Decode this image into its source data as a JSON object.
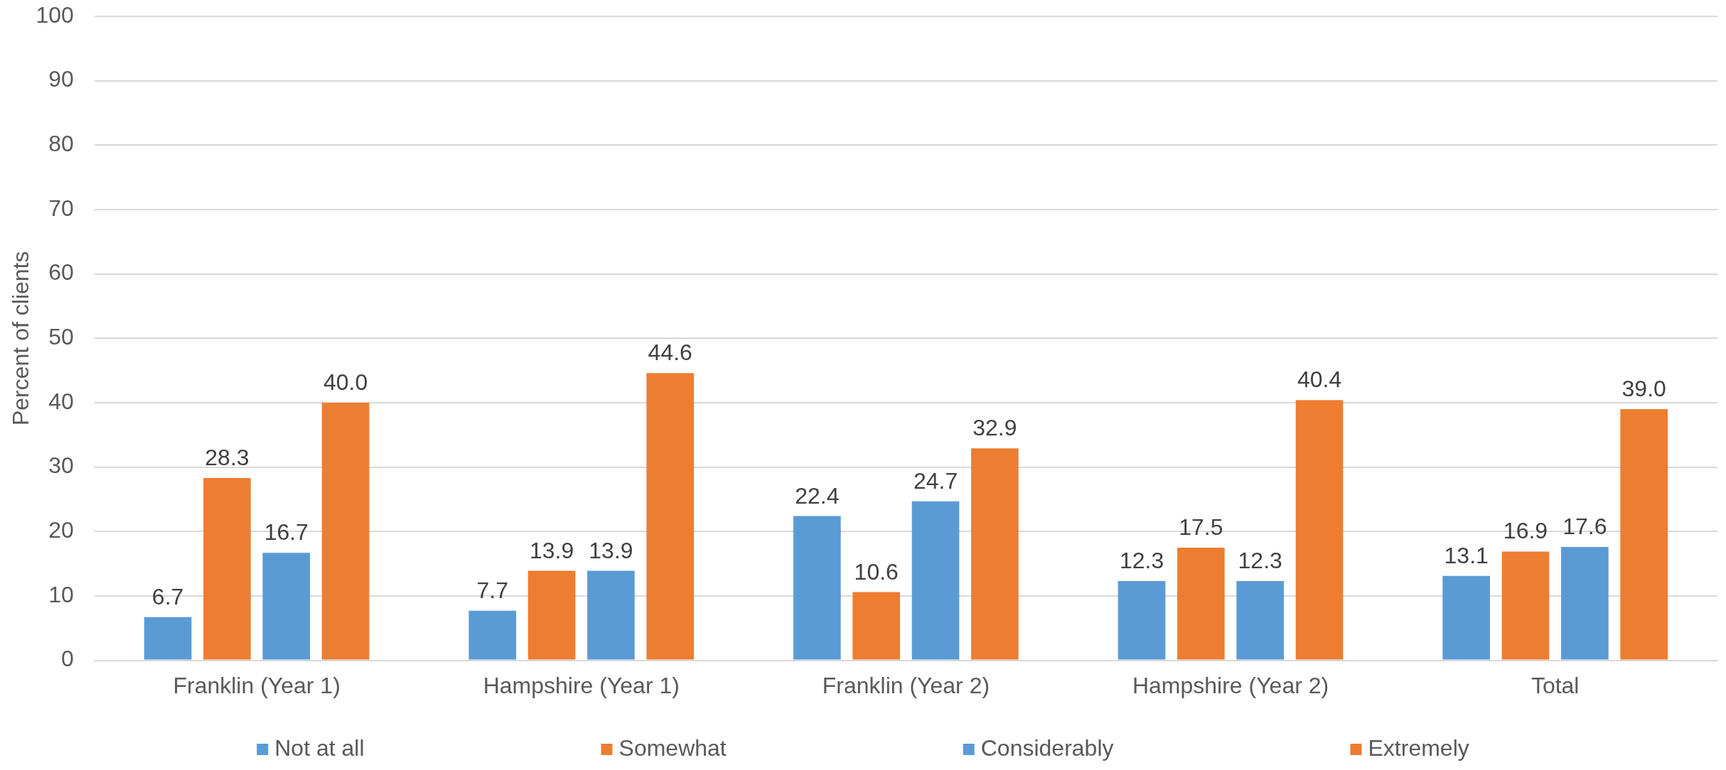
{
  "chart_data": {
    "type": "bar",
    "ylabel": "Percent of clients",
    "categories": [
      "Franklin (Year 1)",
      "Hampshire (Year 1)",
      "Franklin (Year 2)",
      "Hampshire (Year 2)",
      "Total"
    ],
    "series": [
      {
        "name": "Not at all",
        "color": "#5b9bd5",
        "values": [
          6.7,
          7.7,
          22.4,
          12.3,
          13.1
        ],
        "value_labels": [
          "6.7",
          "7.7",
          "22.4",
          "12.3",
          "13.1"
        ]
      },
      {
        "name": "Somewhat",
        "color": "#ed7d31",
        "values": [
          28.3,
          13.9,
          10.6,
          17.5,
          16.9
        ],
        "value_labels": [
          "28.3",
          "13.9",
          "10.6",
          "17.5",
          "16.9"
        ]
      },
      {
        "name": "Considerably",
        "color": "#5b9bd5",
        "values": [
          16.7,
          13.9,
          24.7,
          12.3,
          17.6
        ],
        "value_labels": [
          "16.7",
          "13.9",
          "24.7",
          "12.3",
          "17.6"
        ]
      },
      {
        "name": "Extremely",
        "color": "#ed7d31",
        "values": [
          40.0,
          44.6,
          32.9,
          40.4,
          39.0
        ],
        "value_labels": [
          "40.0",
          "44.6",
          "32.9",
          "40.4",
          "39.0"
        ]
      }
    ],
    "ylim": [
      0,
      100
    ],
    "yticks": [
      0,
      10,
      20,
      30,
      40,
      50,
      60,
      70,
      80,
      90,
      100
    ],
    "grid": "y",
    "legend": "bottom"
  }
}
